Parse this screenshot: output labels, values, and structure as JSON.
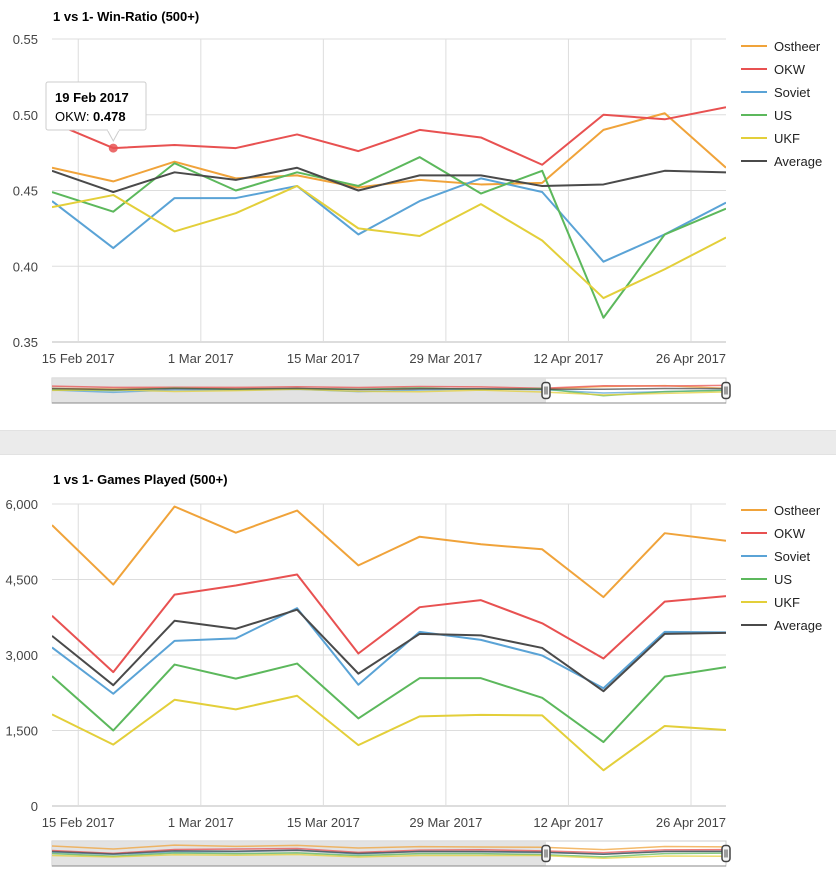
{
  "colors": {
    "Ostheer": "#f0a33a",
    "OKW": "#e85151",
    "Soviet": "#5aa3d6",
    "US": "#5cb85c",
    "UKF": "#e3cf3a",
    "Average": "#4a4a4a",
    "grid": "#dddddd",
    "navigator_bg": "#e0e0e0",
    "navigator_handle": "#444444"
  },
  "chart_data": [
    {
      "type": "line",
      "title": "1 vs 1- Win-Ratio (500+)",
      "xlabel": "",
      "ylabel": "",
      "x": [
        "2017-02-12",
        "2017-02-19",
        "2017-02-26",
        "2017-03-05",
        "2017-03-12",
        "2017-03-19",
        "2017-03-26",
        "2017-04-02",
        "2017-04-09",
        "2017-04-16",
        "2017-04-23",
        "2017-04-30"
      ],
      "x_tick_labels": [
        "15 Feb 2017",
        "1 Mar 2017",
        "15 Mar 2017",
        "29 Mar 2017",
        "12 Apr 2017",
        "26 Apr 2017"
      ],
      "x_tick_dates": [
        "2017-02-15",
        "2017-03-01",
        "2017-03-15",
        "2017-03-29",
        "2017-04-12",
        "2017-04-26"
      ],
      "y_tick_labels": [
        "0.35",
        "0.40",
        "0.45",
        "0.50",
        "0.55"
      ],
      "ylim": [
        0.35,
        0.55
      ],
      "xlim": [
        "2017-02-12",
        "2017-04-30"
      ],
      "grid": true,
      "legend_position": "right",
      "series": [
        {
          "name": "Ostheer",
          "values": [
            0.465,
            0.456,
            0.469,
            0.458,
            0.46,
            0.452,
            0.457,
            0.454,
            0.455,
            0.49,
            0.501,
            0.465
          ]
        },
        {
          "name": "OKW",
          "values": [
            0.495,
            0.478,
            0.48,
            0.478,
            0.487,
            0.476,
            0.49,
            0.485,
            0.467,
            0.5,
            0.497,
            0.505
          ]
        },
        {
          "name": "Soviet",
          "values": [
            0.443,
            0.412,
            0.445,
            0.445,
            0.453,
            0.421,
            0.443,
            0.458,
            0.449,
            0.403,
            0.421,
            0.442
          ]
        },
        {
          "name": "US",
          "values": [
            0.449,
            0.436,
            0.468,
            0.45,
            0.462,
            0.453,
            0.472,
            0.448,
            0.463,
            0.366,
            0.421,
            0.438
          ]
        },
        {
          "name": "UKF",
          "values": [
            0.439,
            0.447,
            0.423,
            0.435,
            0.453,
            0.425,
            0.42,
            0.441,
            0.417,
            0.379,
            0.398,
            0.419
          ]
        },
        {
          "name": "Average",
          "values": [
            0.463,
            0.449,
            0.462,
            0.457,
            0.465,
            0.45,
            0.46,
            0.46,
            0.453,
            0.454,
            0.463,
            0.462
          ]
        }
      ],
      "tooltip": {
        "date": "19 Feb 2017",
        "series": "OKW",
        "label": "OKW: ",
        "value": "0.478"
      }
    },
    {
      "type": "line",
      "title": "1 vs 1- Games Played (500+)",
      "xlabel": "",
      "ylabel": "",
      "x": [
        "2017-02-12",
        "2017-02-19",
        "2017-02-26",
        "2017-03-05",
        "2017-03-12",
        "2017-03-19",
        "2017-03-26",
        "2017-04-02",
        "2017-04-09",
        "2017-04-16",
        "2017-04-23",
        "2017-04-30"
      ],
      "x_tick_labels": [
        "15 Feb 2017",
        "1 Mar 2017",
        "15 Mar 2017",
        "29 Mar 2017",
        "12 Apr 2017",
        "26 Apr 2017"
      ],
      "x_tick_dates": [
        "2017-02-15",
        "2017-03-01",
        "2017-03-15",
        "2017-03-29",
        "2017-04-12",
        "2017-04-26"
      ],
      "y_tick_labels": [
        "0",
        "1,500",
        "3,000",
        "4,500",
        "6,000"
      ],
      "ylim": [
        0,
        6000
      ],
      "xlim": [
        "2017-02-12",
        "2017-04-30"
      ],
      "grid": true,
      "legend_position": "right",
      "series": [
        {
          "name": "Ostheer",
          "values": [
            5580,
            4400,
            5950,
            5430,
            5870,
            4780,
            5350,
            5200,
            5100,
            4150,
            5420,
            5270
          ]
        },
        {
          "name": "OKW",
          "values": [
            3780,
            2660,
            4200,
            4380,
            4600,
            3030,
            3950,
            4090,
            3630,
            2930,
            4060,
            4170
          ]
        },
        {
          "name": "Soviet",
          "values": [
            3150,
            2230,
            3280,
            3330,
            3930,
            2410,
            3460,
            3300,
            2990,
            2340,
            3460,
            3450
          ]
        },
        {
          "name": "US",
          "values": [
            2580,
            1500,
            2810,
            2530,
            2830,
            1740,
            2540,
            2540,
            2150,
            1270,
            2570,
            2760
          ]
        },
        {
          "name": "UKF",
          "values": [
            1820,
            1220,
            2110,
            1920,
            2190,
            1210,
            1780,
            1810,
            1800,
            710,
            1590,
            1510
          ]
        },
        {
          "name": "Average",
          "values": [
            3380,
            2400,
            3680,
            3520,
            3900,
            2630,
            3420,
            3390,
            3140,
            2280,
            3420,
            3440
          ]
        }
      ]
    }
  ]
}
